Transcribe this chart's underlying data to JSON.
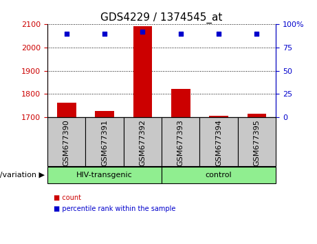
{
  "title": "GDS4229 / 1374545_at",
  "samples": [
    "GSM677390",
    "GSM677391",
    "GSM677392",
    "GSM677393",
    "GSM677394",
    "GSM677395"
  ],
  "count_values": [
    1762,
    1726,
    2092,
    1822,
    1705,
    1716
  ],
  "percentile_values": [
    90,
    90,
    92,
    90,
    90,
    90
  ],
  "ylim_left": [
    1700,
    2100
  ],
  "ylim_right": [
    0,
    100
  ],
  "yticks_left": [
    1700,
    1800,
    1900,
    2000,
    2100
  ],
  "yticks_right": [
    0,
    25,
    50,
    75,
    100
  ],
  "bar_color": "#cc0000",
  "square_color": "#0000cc",
  "bar_bottom": 1700,
  "group_labels": [
    "HIV-transgenic",
    "control"
  ],
  "group_ranges": [
    [
      0,
      2
    ],
    [
      3,
      5
    ]
  ],
  "group_color": "#90ee90",
  "group_label_text": "genotype/variation",
  "legend_labels": [
    "count",
    "percentile rank within the sample"
  ],
  "legend_colors": [
    "#cc0000",
    "#0000cc"
  ],
  "grid_color": "black",
  "title_fontsize": 11,
  "tick_fontsize": 8,
  "label_fontsize": 8,
  "sample_box_color": "#c8c8c8",
  "left_axis_color": "#cc0000",
  "right_axis_color": "#0000cc"
}
